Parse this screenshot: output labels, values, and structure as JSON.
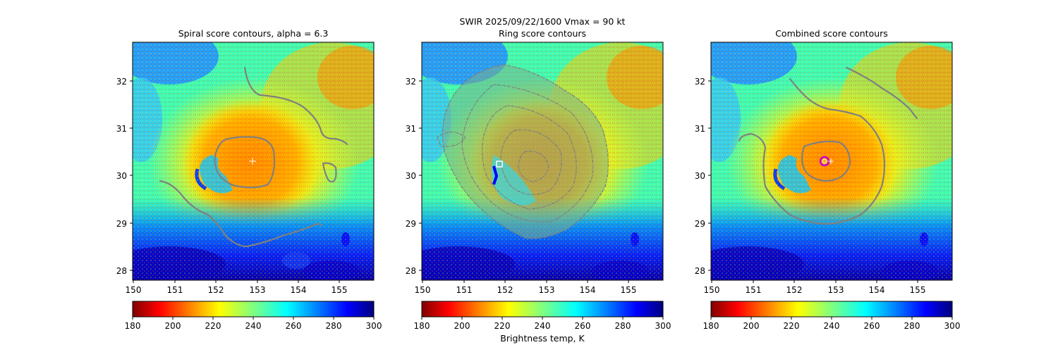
{
  "figure": {
    "suptitle": "SWIR  2025/09/22/1600    Vmax = 90 kt",
    "colorbar_label": "Brightness temp, K"
  },
  "chart_data": [
    {
      "type": "heatmap",
      "title": "Spiral score contours, alpha =  6.3",
      "x_ticks": [
        150,
        151,
        152,
        153,
        154,
        155
      ],
      "y_ticks": [
        28,
        29,
        30,
        31,
        32
      ],
      "xlim": [
        150,
        155.8
      ],
      "ylim": [
        27.8,
        32.8
      ],
      "markers": [
        {
          "kind": "plus",
          "color": "#ffffff",
          "lon": 152.9,
          "lat": 30.3
        }
      ],
      "colorbar": {
        "ticks": [
          180,
          200,
          220,
          240,
          260,
          280,
          300
        ],
        "range": [
          180,
          300
        ],
        "colormap": "jet_r"
      }
    },
    {
      "type": "heatmap",
      "title": "Ring score contours",
      "x_ticks": [
        150,
        151,
        152,
        153,
        154,
        155
      ],
      "y_ticks": [
        28,
        29,
        30,
        31,
        32
      ],
      "xlim": [
        150,
        155.8
      ],
      "ylim": [
        27.8,
        32.8
      ],
      "markers": [
        {
          "kind": "square",
          "color": "#ffffff",
          "lon": 151.85,
          "lat": 30.23
        }
      ],
      "colorbar": {
        "ticks": [
          180,
          200,
          220,
          240,
          260,
          280,
          300
        ],
        "range": [
          180,
          300
        ],
        "colormap": "jet_r"
      }
    },
    {
      "type": "heatmap",
      "title": "Combined score contours",
      "x_ticks": [
        150,
        151,
        152,
        153,
        154,
        155
      ],
      "y_ticks": [
        28,
        29,
        30,
        31,
        32
      ],
      "xlim": [
        150,
        155.8
      ],
      "ylim": [
        27.8,
        32.8
      ],
      "markers": [
        {
          "kind": "circle",
          "color": "#c800c8",
          "lon": 152.7,
          "lat": 30.3
        },
        {
          "kind": "plus",
          "color": "#ffffff",
          "lon": 152.9,
          "lat": 30.3
        }
      ],
      "colorbar": {
        "ticks": [
          180,
          200,
          220,
          240,
          260,
          280,
          300
        ],
        "range": [
          180,
          300
        ],
        "colormap": "jet_r"
      }
    }
  ]
}
